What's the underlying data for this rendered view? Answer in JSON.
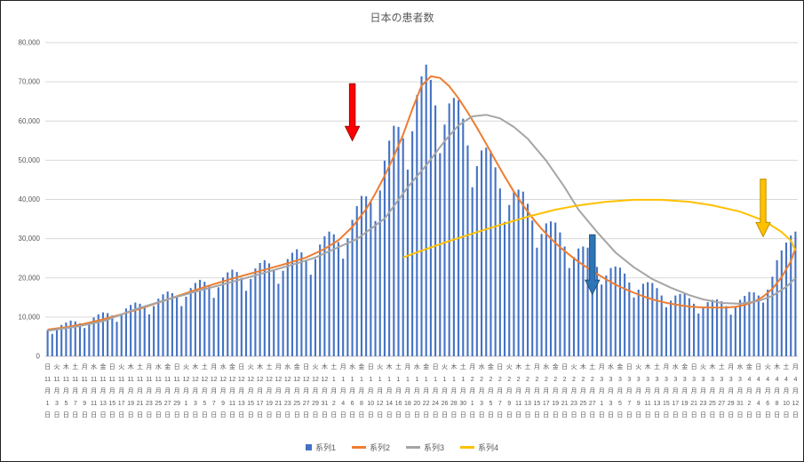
{
  "chart_data": {
    "type": "combo_bar_line",
    "title": "日本の患者数",
    "grid": true,
    "legend_position": "bottom",
    "y_axis": {
      "ylim": [
        0,
        80000
      ],
      "ticks": [
        0,
        10000,
        20000,
        30000,
        40000,
        50000,
        60000,
        70000,
        80000
      ],
      "format": "comma"
    },
    "x_axis": {
      "unit": "day",
      "weekdays": [
        "日",
        "月",
        "火",
        "水",
        "木",
        "金",
        "土"
      ],
      "first_weekday_index": 0,
      "months": [
        {
          "month": 11,
          "days": 30
        },
        {
          "month": 12,
          "days": 31
        },
        {
          "month": 1,
          "days": 31
        },
        {
          "month": 2,
          "days": 28
        },
        {
          "month": 3,
          "days": 31
        },
        {
          "month": 4,
          "days": 12
        }
      ],
      "label_every": 2,
      "month_suffix": "月",
      "day_suffix": "日"
    },
    "series": [
      {
        "name": "系列1",
        "type": "bar",
        "color": "#4472C4",
        "values": [
          6700,
          5700,
          6900,
          8000,
          8600,
          9100,
          8900,
          8400,
          7200,
          8600,
          9900,
          10700,
          11200,
          11000,
          10400,
          8800,
          10600,
          12200,
          13100,
          13700,
          13400,
          12600,
          10700,
          12800,
          14700,
          15800,
          16500,
          16100,
          15100,
          12800,
          15200,
          17400,
          18700,
          19500,
          19000,
          17800,
          14900,
          17600,
          20100,
          21400,
          22100,
          21500,
          20000,
          16700,
          19700,
          22400,
          23800,
          24500,
          23700,
          22000,
          18500,
          21800,
          24800,
          26400,
          27300,
          26500,
          24600,
          20800,
          24800,
          28500,
          30600,
          31800,
          31100,
          29100,
          24900,
          30100,
          34800,
          38300,
          40900,
          40800,
          39600,
          34500,
          42300,
          49900,
          55000,
          58800,
          58500,
          55600,
          47600,
          57400,
          66600,
          71400,
          74400,
          70500,
          64000,
          51800,
          59100,
          64500,
          65900,
          65300,
          60600,
          53800,
          43100,
          48500,
          52500,
          53200,
          52400,
          48200,
          42800,
          34300,
          38600,
          41900,
          42500,
          42000,
          38900,
          34600,
          27700,
          31200,
          33900,
          34400,
          34100,
          31600,
          28000,
          22500,
          25300,
          27500,
          28000,
          27700,
          25700,
          22800,
          18300,
          20600,
          22500,
          22900,
          22600,
          21100,
          18800,
          15000,
          17000,
          18500,
          18900,
          18700,
          17400,
          15500,
          12500,
          14200,
          15500,
          15900,
          15900,
          14800,
          13400,
          10900,
          12500,
          13800,
          14400,
          14500,
          14000,
          12800,
          10600,
          12600,
          14400,
          15400,
          16400,
          16300,
          15500,
          13700,
          17000,
          20300,
          24500,
          27000,
          29000,
          30800,
          31800
        ]
      },
      {
        "name": "系列2",
        "type": "line",
        "color": "#ED7D31",
        "points": [
          [
            0,
            6800
          ],
          [
            4,
            7400
          ],
          [
            8,
            8300
          ],
          [
            12,
            9400
          ],
          [
            16,
            10700
          ],
          [
            20,
            12100
          ],
          [
            24,
            13700
          ],
          [
            28,
            15300
          ],
          [
            32,
            16900
          ],
          [
            36,
            18400
          ],
          [
            40,
            19800
          ],
          [
            44,
            21100
          ],
          [
            48,
            22400
          ],
          [
            52,
            23700
          ],
          [
            56,
            25200
          ],
          [
            60,
            27400
          ],
          [
            63,
            29600
          ],
          [
            66,
            33000
          ],
          [
            69,
            37500
          ],
          [
            71,
            41500
          ],
          [
            73,
            46000
          ],
          [
            75,
            51000
          ],
          [
            77,
            56500
          ],
          [
            79,
            63000
          ],
          [
            81,
            69000
          ],
          [
            83,
            71400
          ],
          [
            85,
            71000
          ],
          [
            87,
            68900
          ],
          [
            89,
            65800
          ],
          [
            91,
            62200
          ],
          [
            93,
            58300
          ],
          [
            95,
            54200
          ],
          [
            97,
            50000
          ],
          [
            99,
            45900
          ],
          [
            101,
            42000
          ],
          [
            103,
            38500
          ],
          [
            105,
            35300
          ],
          [
            107,
            32500
          ],
          [
            109,
            30000
          ],
          [
            111,
            27800
          ],
          [
            113,
            25900
          ],
          [
            115,
            24100
          ],
          [
            117,
            22500
          ],
          [
            119,
            21000
          ],
          [
            121,
            19600
          ],
          [
            123,
            18300
          ],
          [
            125,
            17200
          ],
          [
            127,
            16200
          ],
          [
            129,
            15300
          ],
          [
            131,
            14500
          ],
          [
            133,
            13900
          ],
          [
            135,
            13400
          ],
          [
            137,
            13000
          ],
          [
            139,
            12700
          ],
          [
            141,
            12500
          ],
          [
            143,
            12450
          ],
          [
            145,
            12400
          ],
          [
            147,
            12450
          ],
          [
            149,
            12600
          ],
          [
            151,
            13100
          ],
          [
            153,
            13900
          ],
          [
            155,
            15200
          ],
          [
            157,
            17200
          ],
          [
            159,
            20200
          ],
          [
            161,
            24200
          ],
          [
            162,
            27600
          ]
        ]
      },
      {
        "name": "系列3",
        "type": "line",
        "color": "#A5A5A5",
        "points": [
          [
            0,
            6500
          ],
          [
            6,
            7500
          ],
          [
            12,
            8900
          ],
          [
            19,
            12000
          ],
          [
            26,
            14500
          ],
          [
            33,
            16800
          ],
          [
            40,
            19000
          ],
          [
            47,
            21300
          ],
          [
            54,
            23700
          ],
          [
            58,
            25200
          ],
          [
            62,
            27300
          ],
          [
            67,
            29900
          ],
          [
            73,
            35100
          ],
          [
            78,
            43100
          ],
          [
            82,
            48700
          ],
          [
            86,
            54900
          ],
          [
            89,
            58900
          ],
          [
            92,
            61200
          ],
          [
            95,
            61600
          ],
          [
            98,
            60700
          ],
          [
            101,
            58500
          ],
          [
            104,
            55500
          ],
          [
            108,
            49900
          ],
          [
            112,
            43100
          ],
          [
            115,
            37400
          ],
          [
            119,
            31700
          ],
          [
            123,
            26500
          ],
          [
            127,
            22700
          ],
          [
            131,
            19700
          ],
          [
            135,
            17500
          ],
          [
            139,
            15600
          ],
          [
            142,
            14500
          ],
          [
            146,
            13600
          ],
          [
            150,
            13400
          ],
          [
            154,
            14100
          ],
          [
            157,
            15400
          ],
          [
            160,
            17700
          ],
          [
            162,
            19900
          ]
        ]
      },
      {
        "name": "系列4",
        "type": "line",
        "color": "#FFC000",
        "points": [
          [
            77,
            25200
          ],
          [
            80,
            26500
          ],
          [
            86,
            29000
          ],
          [
            92,
            31300
          ],
          [
            98,
            33500
          ],
          [
            104,
            35600
          ],
          [
            110,
            37400
          ],
          [
            115,
            38500
          ],
          [
            121,
            39400
          ],
          [
            127,
            39900
          ],
          [
            133,
            39900
          ],
          [
            139,
            39400
          ],
          [
            144,
            38500
          ],
          [
            150,
            36900
          ],
          [
            155,
            34700
          ],
          [
            159,
            31700
          ],
          [
            161,
            29500
          ],
          [
            162,
            27000
          ]
        ]
      }
    ],
    "annotations": [
      {
        "name": "red-arrow",
        "shape": "down-arrow",
        "fill": "#FF0000",
        "stroke": "#990000",
        "day": 66,
        "value_from": 69500,
        "value_to": 55000
      },
      {
        "name": "blue-arrow",
        "shape": "down-arrow",
        "fill": "#2E75B6",
        "stroke": "#1F4E79",
        "day": 118,
        "value_from": 31000,
        "value_to": 15800
      },
      {
        "name": "yellow-arrow",
        "shape": "down-arrow",
        "fill": "#FFC000",
        "stroke": "#BF9000",
        "day": 155,
        "value_from": 45200,
        "value_to": 30500
      }
    ]
  },
  "legend": {
    "items": [
      "系列1",
      "系列2",
      "系列3",
      "系列4"
    ]
  },
  "style_colors": {
    "gridline": "#D9D9D9",
    "axis_line": "#BFBFBF",
    "text": "#595959"
  }
}
